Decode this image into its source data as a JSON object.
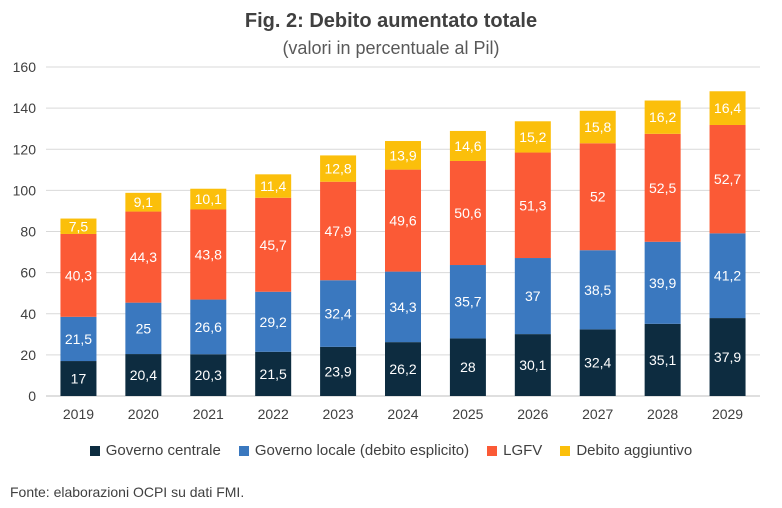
{
  "title": "Fig. 2: Debito aumentato totale",
  "subtitle": "(valori in percentuale al Pil)",
  "source": "Fonte: elaborazioni OCPI su dati FMI.",
  "chart_data": {
    "type": "bar",
    "stacked": true,
    "categories": [
      "2019",
      "2020",
      "2021",
      "2022",
      "2023",
      "2024",
      "2025",
      "2026",
      "2027",
      "2028",
      "2029"
    ],
    "ylim": [
      0,
      160
    ],
    "yticks": [
      0,
      20,
      40,
      60,
      80,
      100,
      120,
      140,
      160
    ],
    "grid": true,
    "legend_position": "bottom",
    "series": [
      {
        "name": "Governo centrale",
        "color": "#0d2c40",
        "values": [
          17,
          20.4,
          20.3,
          21.5,
          23.9,
          26.2,
          28,
          30.1,
          32.4,
          35.1,
          37.9
        ]
      },
      {
        "name": "Governo locale (debito esplicito)",
        "color": "#3a78bf",
        "values": [
          21.5,
          25,
          26.6,
          29.2,
          32.4,
          34.3,
          35.7,
          37,
          38.5,
          39.9,
          41.2
        ]
      },
      {
        "name": "LGFV",
        "color": "#fb5a36",
        "values": [
          40.3,
          44.3,
          43.8,
          45.7,
          47.9,
          49.6,
          50.6,
          51.3,
          52,
          52.5,
          52.7
        ]
      },
      {
        "name": "Debito aggiuntivo",
        "color": "#fbbf0b",
        "values": [
          7.5,
          9.1,
          10.1,
          11.4,
          12.8,
          13.9,
          14.6,
          15.2,
          15.8,
          16.2,
          16.4
        ]
      }
    ]
  }
}
